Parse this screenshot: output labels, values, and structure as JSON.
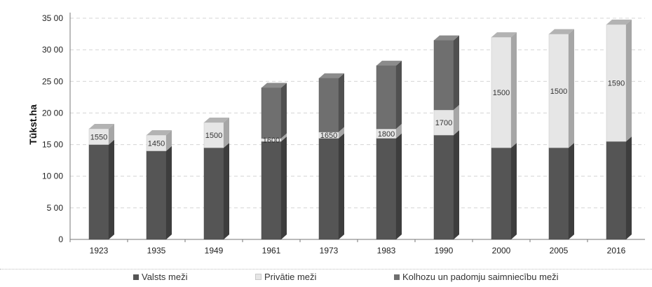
{
  "chart_data": {
    "type": "bar",
    "stacked": true,
    "style_3d": true,
    "ylabel": "Tūkst.ha",
    "ylim": [
      0,
      3500
    ],
    "yticks": [
      0,
      500,
      1000,
      1500,
      2000,
      2500,
      3000,
      3500
    ],
    "ytick_labels": [
      "0",
      "5 00",
      "10 00",
      "15 00",
      "20 00",
      "25 00",
      "30 00",
      "35 00"
    ],
    "grid": "horizontal dashed",
    "legend_position": "bottom",
    "categories": [
      "1923",
      "1935",
      "1949",
      "1961",
      "1973",
      "1983",
      "1990",
      "2000",
      "2005",
      "2016"
    ],
    "series": [
      {
        "name": "Valsts meži",
        "color": "#555555",
        "values": [
          1500,
          1400,
          1450,
          1550,
          1600,
          1600,
          1650,
          1450,
          1450,
          1550
        ]
      },
      {
        "name": "Privātie meži",
        "color": "#e6e6e6",
        "values": [
          250,
          250,
          400,
          50,
          100,
          150,
          400,
          1750,
          1800,
          1850
        ]
      },
      {
        "name": "Kolhozu un padomju saimniecību meži",
        "color": "#6f6f6f",
        "values": [
          0,
          0,
          0,
          800,
          850,
          1000,
          1100,
          0,
          0,
          0
        ]
      }
    ],
    "data_labels": [
      "1550",
      "1450",
      "1500",
      "1600",
      "1650",
      "1800",
      "1700",
      "1500",
      "1500",
      "1590"
    ]
  }
}
